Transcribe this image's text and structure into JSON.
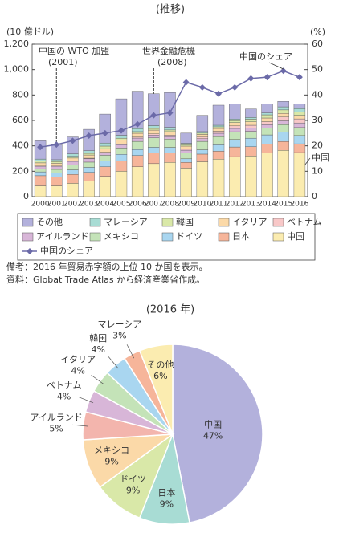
{
  "chart_data": [
    {
      "type": "bar",
      "title": "(推移)",
      "y_label": "(10 億ドル)",
      "y2_label": "(%)",
      "categories": [
        "2000",
        "2001",
        "2002",
        "2003",
        "2004",
        "2005",
        "2006",
        "2007",
        "2008",
        "2009",
        "2010",
        "2011",
        "2012",
        "2013",
        "2014",
        "2015",
        "2016"
      ],
      "stacked": true,
      "series": [
        {
          "name": "中国",
          "color": "#fbecb0",
          "values": [
            85,
            85,
            105,
            125,
            160,
            200,
            235,
            260,
            270,
            225,
            275,
            295,
            315,
            320,
            345,
            365,
            347
          ]
        },
        {
          "name": "日本",
          "color": "#f6b59a",
          "values": [
            80,
            70,
            70,
            66,
            75,
            83,
            89,
            84,
            75,
            45,
            60,
            63,
            76,
            73,
            67,
            69,
            69
          ]
        },
        {
          "name": "ドイツ",
          "color": "#a9d6f0",
          "values": [
            30,
            30,
            36,
            40,
            46,
            50,
            47,
            45,
            43,
            28,
            34,
            50,
            59,
            67,
            74,
            75,
            65
          ]
        },
        {
          "name": "メキシコ",
          "color": "#c4e3b8",
          "values": [
            25,
            30,
            40,
            41,
            45,
            50,
            64,
            74,
            65,
            48,
            66,
            65,
            61,
            54,
            53,
            58,
            63
          ]
        },
        {
          "name": "アイルランド",
          "color": "#d8b6d8",
          "values": [
            20,
            25,
            27,
            26,
            19,
            26,
            26,
            22,
            20,
            20,
            21,
            26,
            26,
            25,
            27,
            30,
            36
          ]
        },
        {
          "name": "ベトナム",
          "color": "#f8c8c8",
          "values": [
            1,
            1,
            2,
            5,
            5,
            6,
            8,
            9,
            11,
            11,
            13,
            16,
            20,
            23,
            24,
            30,
            32
          ]
        },
        {
          "name": "イタリア",
          "color": "#fbd9a8",
          "values": [
            25,
            22,
            24,
            25,
            28,
            29,
            30,
            30,
            28,
            21,
            21,
            22,
            26,
            27,
            29,
            28,
            28
          ]
        },
        {
          "name": "韓国",
          "color": "#d9e8a8",
          "values": [
            15,
            13,
            13,
            13,
            20,
            16,
            13,
            13,
            13,
            11,
            10,
            13,
            16,
            21,
            25,
            28,
            28
          ]
        },
        {
          "name": "マレーシア",
          "color": "#a8dcd4",
          "values": [
            15,
            15,
            20,
            21,
            24,
            23,
            24,
            22,
            21,
            11,
            12,
            12,
            12,
            13,
            15,
            24,
            25
          ]
        },
        {
          "name": "その他",
          "color": "#b3b1dc",
          "values": [
            144,
            119,
            133,
            168,
            228,
            287,
            294,
            251,
            274,
            80,
            128,
            158,
            119,
            67,
            71,
            43,
            37
          ]
        },
        {
          "name": "中国のシェア",
          "color": "#6b6aa8",
          "type": "line",
          "axis": "y2",
          "values": [
            19.5,
            20.5,
            22,
            24,
            25,
            26,
            28.5,
            32,
            33,
            45,
            43,
            40.5,
            43,
            46.5,
            47,
            49.5,
            47
          ]
        }
      ],
      "ylim": [
        0,
        1200
      ],
      "yticks": [
        0,
        200,
        400,
        600,
        800,
        {
          "value": 1000,
          "label": "1,000"
        },
        {
          "value": 1200,
          "label": "1,200"
        }
      ],
      "y2lim": [
        0,
        60
      ],
      "y2ticks": [
        0,
        10,
        20,
        30,
        40,
        50,
        60
      ],
      "annotations": [
        "中国の WTO 加盟",
        "(2001)",
        "世界金融危機",
        "(2008)",
        "中国のシェア",
        "中国"
      ],
      "notes": [
        "備考：2016 年貿易赤字額の上位 10 か国を表示。",
        "資料：Globat Trade Atlas から経済産業省作成。"
      ],
      "legend": "bottom"
    },
    {
      "type": "pie",
      "title": "(2016 年)",
      "categories": [
        "中国",
        "日本",
        "ドイツ",
        "メキシコ",
        "アイルランド",
        "ベトナム",
        "イタリア",
        "韓国",
        "マレーシア",
        "その他"
      ],
      "values": [
        47,
        9,
        9,
        9,
        5,
        4,
        4,
        4,
        3,
        6
      ],
      "value_labels": [
        "47%",
        "9%",
        "9%",
        "9%",
        "5%",
        "4%",
        "4%",
        "4%",
        "3%",
        "6%"
      ],
      "colors": [
        "#b3b1dc",
        "#a8dcd4",
        "#d9e8a8",
        "#fbd9a8",
        "#f3b5ad",
        "#d8b6d8",
        "#c4e3b8",
        "#a9d6f0",
        "#f6b59a",
        "#fbecb0"
      ]
    }
  ]
}
